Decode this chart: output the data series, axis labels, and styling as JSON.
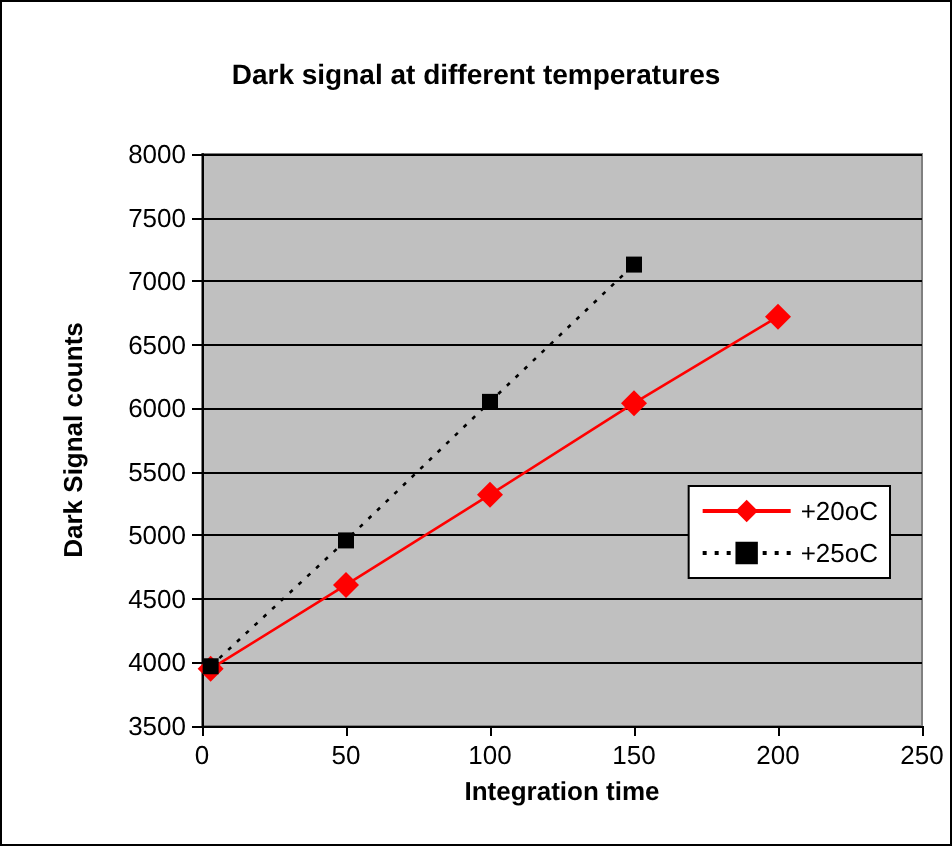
{
  "chart_data": {
    "type": "line",
    "title": "Dark signal at different temperatures",
    "xlabel": "Integration time",
    "ylabel": "Dark Signal counts",
    "x": [
      3,
      50,
      100,
      150,
      200
    ],
    "series": [
      {
        "name": "+20oC",
        "color": "#ff0000",
        "marker": "diamond",
        "line_style": "solid",
        "values": [
          3950,
          4610,
          5320,
          6040,
          6720
        ]
      },
      {
        "name": "+25oC",
        "color": "#000000",
        "marker": "square",
        "line_style": "dotted",
        "values": [
          3970,
          4960,
          6050,
          7130,
          null
        ]
      }
    ],
    "xlim": [
      0,
      250
    ],
    "xticks": [
      0,
      50,
      100,
      150,
      200,
      250
    ],
    "ylim": [
      3500,
      8000
    ],
    "yticks": [
      3500,
      4000,
      4500,
      5000,
      5500,
      6000,
      6500,
      7000,
      7500,
      8000
    ],
    "grid": "y",
    "legend": "right"
  }
}
